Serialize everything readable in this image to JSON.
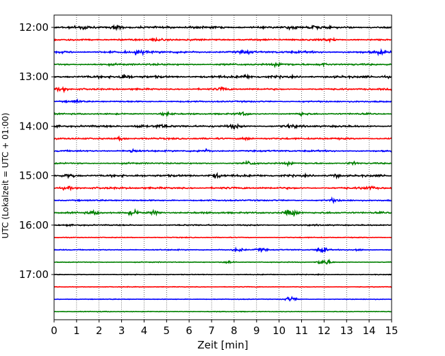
{
  "chart_data": {
    "type": "line",
    "title": "",
    "xlabel": "Zeit  [min]",
    "ylabel": "UTC (Lokalzeit = UTC + 01:00)",
    "xlim": [
      0,
      15
    ],
    "x_ticks": [
      0,
      1,
      2,
      3,
      4,
      5,
      6,
      7,
      8,
      9,
      10,
      11,
      12,
      13,
      14,
      15
    ],
    "y_tick_labels": [
      "12:00",
      "13:00",
      "14:00",
      "15:00",
      "16:00",
      "17:00"
    ],
    "y_tick_rows": [
      0,
      4,
      8,
      12,
      16,
      20
    ],
    "grid": "vertical dotted at each minute",
    "trace_colors": [
      "#000000",
      "#ff0000",
      "#0000ff",
      "#008000"
    ],
    "traces": [
      {
        "start": "12:00",
        "color": "black",
        "amplitude": 0.9,
        "events": [
          {
            "t": 1.3,
            "a": 1.4
          },
          {
            "t": 2.8,
            "a": 2.0
          },
          {
            "t": 10.6,
            "a": 1.3
          },
          {
            "t": 11.5,
            "a": 1.3
          }
        ]
      },
      {
        "start": "12:15",
        "color": "red",
        "amplitude": 0.8,
        "events": [
          {
            "t": 4.5,
            "a": 1.2
          },
          {
            "t": 12.2,
            "a": 1.2
          }
        ]
      },
      {
        "start": "12:30",
        "color": "blue",
        "amplitude": 0.9,
        "events": [
          {
            "t": 3.8,
            "a": 2.0
          },
          {
            "t": 8.5,
            "a": 1.2
          },
          {
            "t": 14.5,
            "a": 1.4
          }
        ]
      },
      {
        "start": "12:45",
        "color": "green",
        "amplitude": 0.8,
        "events": [
          {
            "t": 10.0,
            "a": 1.3
          },
          {
            "t": 12.0,
            "a": 1.2
          }
        ]
      },
      {
        "start": "13:00",
        "color": "black",
        "amplitude": 1.0,
        "events": [
          {
            "t": 3.1,
            "a": 2.2
          },
          {
            "t": 8.5,
            "a": 1.2
          }
        ]
      },
      {
        "start": "13:15",
        "color": "red",
        "amplitude": 0.7,
        "events": [
          {
            "t": 0.3,
            "a": 1.4
          },
          {
            "t": 7.5,
            "a": 1.3
          }
        ]
      },
      {
        "start": "13:30",
        "color": "blue",
        "amplitude": 0.6,
        "events": [
          {
            "t": 1.0,
            "a": 1.2
          }
        ]
      },
      {
        "start": "13:45",
        "color": "green",
        "amplitude": 0.6,
        "events": [
          {
            "t": 5.0,
            "a": 1.3
          },
          {
            "t": 8.4,
            "a": 1.3
          },
          {
            "t": 11.0,
            "a": 1.2
          }
        ]
      },
      {
        "start": "14:00",
        "color": "black",
        "amplitude": 0.8,
        "events": [
          {
            "t": 3.8,
            "a": 1.3
          },
          {
            "t": 4.7,
            "a": 1.4
          },
          {
            "t": 8.0,
            "a": 1.6
          },
          {
            "t": 10.5,
            "a": 1.2
          }
        ]
      },
      {
        "start": "14:15",
        "color": "red",
        "amplitude": 0.7,
        "events": [
          {
            "t": 3.0,
            "a": 1.2
          },
          {
            "t": 8.5,
            "a": 1.3
          }
        ]
      },
      {
        "start": "14:30",
        "color": "blue",
        "amplitude": 0.7,
        "events": [
          {
            "t": 3.5,
            "a": 1.3
          },
          {
            "t": 6.7,
            "a": 1.2
          }
        ]
      },
      {
        "start": "14:45",
        "color": "green",
        "amplitude": 0.6,
        "events": [
          {
            "t": 8.7,
            "a": 1.6
          },
          {
            "t": 10.5,
            "a": 1.2
          },
          {
            "t": 13.3,
            "a": 1.2
          }
        ]
      },
      {
        "start": "15:00",
        "color": "black",
        "amplitude": 0.9,
        "events": [
          {
            "t": 0.7,
            "a": 1.3
          },
          {
            "t": 7.2,
            "a": 2.0
          },
          {
            "t": 12.5,
            "a": 1.3
          }
        ]
      },
      {
        "start": "15:15",
        "color": "red",
        "amplitude": 0.8,
        "events": [
          {
            "t": 0.6,
            "a": 1.3
          },
          {
            "t": 14.0,
            "a": 1.2
          }
        ]
      },
      {
        "start": "15:30",
        "color": "blue",
        "amplitude": 0.6,
        "events": [
          {
            "t": 12.4,
            "a": 1.3
          }
        ]
      },
      {
        "start": "15:45",
        "color": "green",
        "amplitude": 0.7,
        "events": [
          {
            "t": 1.8,
            "a": 1.2
          },
          {
            "t": 3.5,
            "a": 1.8
          },
          {
            "t": 4.5,
            "a": 1.6
          },
          {
            "t": 10.4,
            "a": 2.0
          },
          {
            "t": 10.7,
            "a": 1.5
          }
        ]
      },
      {
        "start": "16:00",
        "color": "black",
        "amplitude": 0.55,
        "events": []
      },
      {
        "start": "16:15",
        "color": "red",
        "amplitude": 0.35,
        "events": []
      },
      {
        "start": "16:30",
        "color": "blue",
        "amplitude": 0.45,
        "events": [
          {
            "t": 8.2,
            "a": 1.5
          },
          {
            "t": 9.2,
            "a": 1.4
          },
          {
            "t": 11.9,
            "a": 2.6
          },
          {
            "t": 13.5,
            "a": 1.0
          }
        ]
      },
      {
        "start": "16:45",
        "color": "green",
        "amplitude": 0.35,
        "events": [
          {
            "t": 7.8,
            "a": 1.4
          },
          {
            "t": 12.0,
            "a": 3.0
          }
        ]
      },
      {
        "start": "17:00",
        "color": "black",
        "amplitude": 0.35,
        "events": []
      },
      {
        "start": "17:15",
        "color": "red",
        "amplitude": 0.3,
        "events": []
      },
      {
        "start": "17:30",
        "color": "blue",
        "amplitude": 0.3,
        "events": [
          {
            "t": 10.5,
            "a": 2.0
          }
        ]
      },
      {
        "start": "17:45",
        "color": "green",
        "amplitude": 0.3,
        "events": []
      }
    ]
  }
}
